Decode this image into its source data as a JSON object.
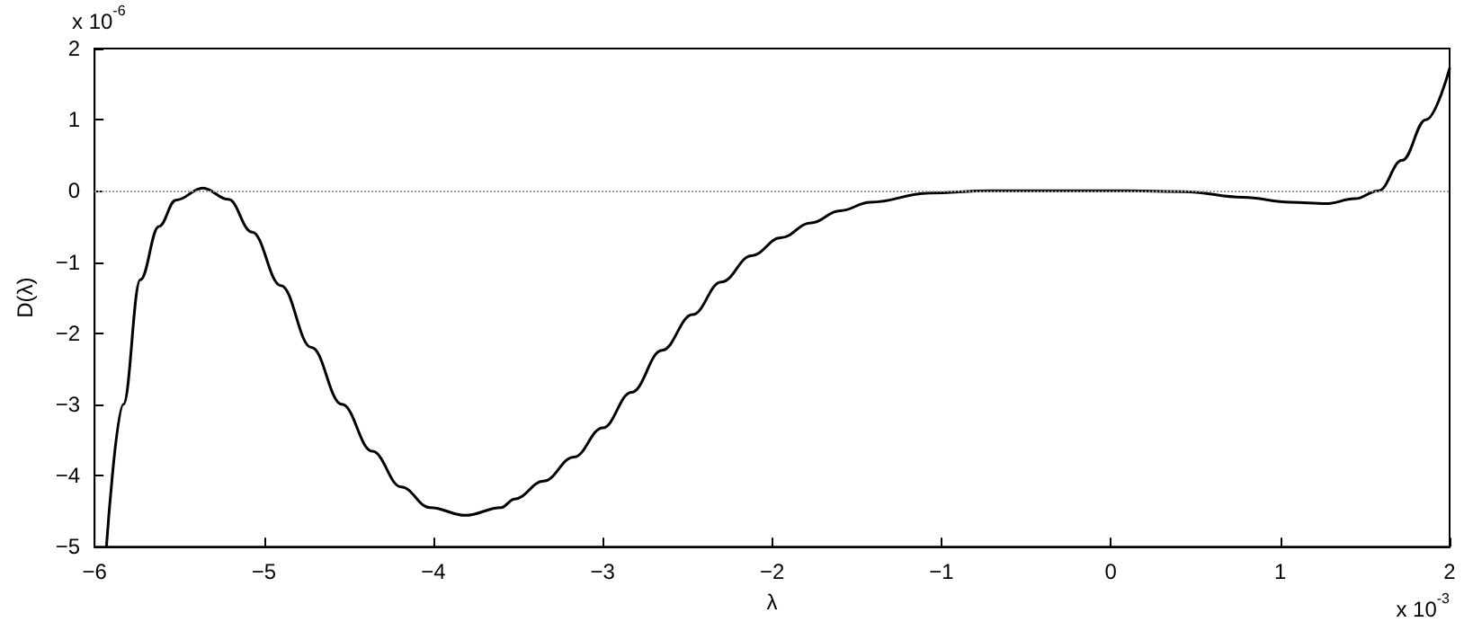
{
  "chart_data": {
    "type": "line",
    "xlabel": "λ",
    "ylabel": "D(λ)",
    "annotations": [
      "x 10$^{-6}$",
      "x 10$^{-3}$"
    ],
    "x": [
      -5.93,
      -5.83,
      -5.73,
      -5.62,
      -5.52,
      -5.36,
      -5.21,
      -5.07,
      -4.9,
      -4.72,
      -4.54,
      -4.36,
      -4.19,
      -4.02,
      -3.81,
      -3.6,
      -3.52,
      -3.35,
      -3.17,
      -3.0,
      -2.83,
      -2.65,
      -2.47,
      -2.3,
      -2.12,
      -1.95,
      -1.77,
      -1.6,
      -1.42,
      -1.07,
      -0.72,
      -0.3,
      0.1,
      0.43,
      0.78,
      1.06,
      1.27,
      1.44,
      1.58,
      1.72,
      1.86,
      2.0
    ],
    "series": [
      {
        "color": "#000000",
        "values": [
          -5,
          -3.0,
          -1.25,
          -0.5,
          -0.13,
          0.04,
          -0.12,
          -0.58,
          -1.33,
          -2.2,
          -3.0,
          -3.66,
          -4.16,
          -4.45,
          -4.56,
          -4.45,
          -4.33,
          -4.08,
          -3.74,
          -3.33,
          -2.83,
          -2.24,
          -1.74,
          -1.28,
          -0.91,
          -0.66,
          -0.45,
          -0.28,
          -0.16,
          -0.03,
          0,
          0,
          0,
          -0.01,
          -0.09,
          -0.16,
          -0.18,
          -0.11,
          0,
          0.43,
          1.0,
          1.72
        ]
      }
    ],
    "xlim": [
      -6,
      2
    ],
    "xticks": [
      -6,
      -5,
      -4,
      -3,
      -2,
      -1,
      0,
      1,
      2
    ],
    "ylim": [
      -5,
      2
    ],
    "yticks": [
      -5,
      -4,
      -3,
      -2,
      -1,
      0,
      1,
      2
    ],
    "ref_lines": [
      {
        "axis": "y",
        "value": 0,
        "color": "#999999",
        "line_style": "dotted"
      }
    ],
    "grid": false,
    "marker": "none",
    "line_style": "solid"
  }
}
